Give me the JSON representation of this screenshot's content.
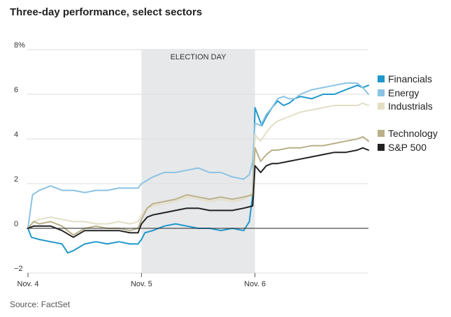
{
  "title": "Three-day performance, select sectors",
  "source": "Source: FactSet",
  "chart_data": {
    "type": "line",
    "title": "Three-day performance, select sectors",
    "xlabel": "",
    "ylabel": "",
    "x_tick_labels": [
      "Nov. 4",
      "Nov. 5",
      "Nov. 6"
    ],
    "y_ticks": [
      8,
      6,
      4,
      2,
      0,
      -2
    ],
    "y_tick_labels": [
      "8%",
      "6",
      "4",
      "2",
      "0",
      "−2"
    ],
    "ylim": [
      -2,
      8
    ],
    "xlim": [
      0,
      3
    ],
    "grid": true,
    "annotation": {
      "label": "ELECTION DAY",
      "from": 1,
      "to": 2,
      "color": "#e7e8ea"
    },
    "legend": "right",
    "series": [
      {
        "name": "Financials",
        "color": "#1f98cc",
        "width": 2,
        "points": [
          [
            0,
            0
          ],
          [
            0.03,
            -0.4
          ],
          [
            0.1,
            -0.5
          ],
          [
            0.2,
            -0.6
          ],
          [
            0.3,
            -0.7
          ],
          [
            0.35,
            -1.1
          ],
          [
            0.4,
            -1.0
          ],
          [
            0.5,
            -0.7
          ],
          [
            0.6,
            -0.6
          ],
          [
            0.7,
            -0.7
          ],
          [
            0.8,
            -0.6
          ],
          [
            0.9,
            -0.7
          ],
          [
            0.97,
            -0.7
          ],
          [
            1.0,
            -0.5
          ],
          [
            1.03,
            -0.2
          ],
          [
            1.1,
            -0.1
          ],
          [
            1.2,
            0.1
          ],
          [
            1.3,
            0.2
          ],
          [
            1.4,
            0.1
          ],
          [
            1.5,
            0.0
          ],
          [
            1.6,
            0.0
          ],
          [
            1.7,
            -0.1
          ],
          [
            1.8,
            0.0
          ],
          [
            1.9,
            -0.1
          ],
          [
            1.95,
            0.3
          ],
          [
            1.98,
            1.5
          ],
          [
            2.0,
            5.4
          ],
          [
            2.03,
            5.0
          ],
          [
            2.06,
            4.6
          ],
          [
            2.1,
            5.0
          ],
          [
            2.15,
            5.4
          ],
          [
            2.2,
            5.7
          ],
          [
            2.25,
            5.5
          ],
          [
            2.3,
            5.6
          ],
          [
            2.35,
            5.8
          ],
          [
            2.4,
            5.9
          ],
          [
            2.5,
            5.8
          ],
          [
            2.6,
            6.0
          ],
          [
            2.7,
            6.0
          ],
          [
            2.8,
            6.2
          ],
          [
            2.9,
            6.4
          ],
          [
            2.95,
            6.3
          ],
          [
            3.0,
            6.4
          ]
        ]
      },
      {
        "name": "Energy",
        "color": "#8cc3e3",
        "width": 2,
        "points": [
          [
            0,
            0
          ],
          [
            0.04,
            1.5
          ],
          [
            0.1,
            1.7
          ],
          [
            0.2,
            1.9
          ],
          [
            0.3,
            1.7
          ],
          [
            0.4,
            1.7
          ],
          [
            0.5,
            1.6
          ],
          [
            0.6,
            1.7
          ],
          [
            0.7,
            1.7
          ],
          [
            0.8,
            1.8
          ],
          [
            0.9,
            1.8
          ],
          [
            0.97,
            1.8
          ],
          [
            1.0,
            2.0
          ],
          [
            1.1,
            2.3
          ],
          [
            1.2,
            2.5
          ],
          [
            1.3,
            2.5
          ],
          [
            1.4,
            2.6
          ],
          [
            1.5,
            2.7
          ],
          [
            1.6,
            2.5
          ],
          [
            1.7,
            2.5
          ],
          [
            1.8,
            2.3
          ],
          [
            1.9,
            2.2
          ],
          [
            1.95,
            2.4
          ],
          [
            1.98,
            3.0
          ],
          [
            2.0,
            4.7
          ],
          [
            2.05,
            4.6
          ],
          [
            2.1,
            5.1
          ],
          [
            2.15,
            5.4
          ],
          [
            2.2,
            5.8
          ],
          [
            2.25,
            5.9
          ],
          [
            2.3,
            5.8
          ],
          [
            2.35,
            5.8
          ],
          [
            2.4,
            6.0
          ],
          [
            2.5,
            6.2
          ],
          [
            2.6,
            6.3
          ],
          [
            2.7,
            6.4
          ],
          [
            2.8,
            6.5
          ],
          [
            2.9,
            6.5
          ],
          [
            2.95,
            6.3
          ],
          [
            3.0,
            6.0
          ]
        ]
      },
      {
        "name": "Industrials",
        "color": "#e3dfc6",
        "width": 2,
        "points": [
          [
            0,
            0
          ],
          [
            0.05,
            0.3
          ],
          [
            0.1,
            0.4
          ],
          [
            0.2,
            0.5
          ],
          [
            0.3,
            0.4
          ],
          [
            0.4,
            0.3
          ],
          [
            0.5,
            0.3
          ],
          [
            0.6,
            0.2
          ],
          [
            0.7,
            0.2
          ],
          [
            0.8,
            0.3
          ],
          [
            0.9,
            0.2
          ],
          [
            0.97,
            0.3
          ],
          [
            1.0,
            0.6
          ],
          [
            1.05,
            0.9
          ],
          [
            1.1,
            1.0
          ],
          [
            1.2,
            1.1
          ],
          [
            1.3,
            1.2
          ],
          [
            1.4,
            1.4
          ],
          [
            1.5,
            1.3
          ],
          [
            1.6,
            1.2
          ],
          [
            1.7,
            1.3
          ],
          [
            1.8,
            1.2
          ],
          [
            1.9,
            1.3
          ],
          [
            1.98,
            1.6
          ],
          [
            2.0,
            4.2
          ],
          [
            2.05,
            3.9
          ],
          [
            2.1,
            4.3
          ],
          [
            2.15,
            4.6
          ],
          [
            2.2,
            4.8
          ],
          [
            2.3,
            5.0
          ],
          [
            2.4,
            5.2
          ],
          [
            2.5,
            5.3
          ],
          [
            2.6,
            5.4
          ],
          [
            2.7,
            5.5
          ],
          [
            2.8,
            5.5
          ],
          [
            2.9,
            5.5
          ],
          [
            2.95,
            5.6
          ],
          [
            3.0,
            5.5
          ]
        ]
      },
      {
        "name": "Technology",
        "color": "#b9b088",
        "width": 2,
        "points": [
          [
            0,
            0
          ],
          [
            0.05,
            0.3
          ],
          [
            0.1,
            0.2
          ],
          [
            0.2,
            0.3
          ],
          [
            0.3,
            0.1
          ],
          [
            0.4,
            -0.3
          ],
          [
            0.5,
            0.0
          ],
          [
            0.6,
            0.1
          ],
          [
            0.7,
            0.0
          ],
          [
            0.8,
            0.0
          ],
          [
            0.9,
            -0.1
          ],
          [
            0.97,
            0.0
          ],
          [
            1.0,
            0.4
          ],
          [
            1.05,
            0.9
          ],
          [
            1.1,
            1.1
          ],
          [
            1.2,
            1.2
          ],
          [
            1.3,
            1.3
          ],
          [
            1.4,
            1.5
          ],
          [
            1.5,
            1.4
          ],
          [
            1.6,
            1.3
          ],
          [
            1.7,
            1.4
          ],
          [
            1.8,
            1.3
          ],
          [
            1.9,
            1.4
          ],
          [
            1.98,
            1.5
          ],
          [
            2.0,
            3.6
          ],
          [
            2.05,
            3.0
          ],
          [
            2.1,
            3.3
          ],
          [
            2.15,
            3.5
          ],
          [
            2.2,
            3.5
          ],
          [
            2.3,
            3.6
          ],
          [
            2.4,
            3.6
          ],
          [
            2.5,
            3.7
          ],
          [
            2.6,
            3.7
          ],
          [
            2.7,
            3.8
          ],
          [
            2.8,
            3.9
          ],
          [
            2.9,
            4.0
          ],
          [
            2.95,
            4.1
          ],
          [
            3.0,
            3.9
          ]
        ]
      },
      {
        "name": "S&P 500",
        "color": "#222222",
        "width": 2,
        "points": [
          [
            0,
            0
          ],
          [
            0.05,
            0.1
          ],
          [
            0.1,
            0.1
          ],
          [
            0.2,
            0.1
          ],
          [
            0.3,
            -0.1
          ],
          [
            0.4,
            -0.4
          ],
          [
            0.5,
            -0.1
          ],
          [
            0.6,
            -0.1
          ],
          [
            0.7,
            -0.1
          ],
          [
            0.8,
            -0.1
          ],
          [
            0.9,
            -0.2
          ],
          [
            0.97,
            -0.2
          ],
          [
            1.0,
            0.2
          ],
          [
            1.05,
            0.5
          ],
          [
            1.1,
            0.6
          ],
          [
            1.2,
            0.7
          ],
          [
            1.3,
            0.8
          ],
          [
            1.4,
            0.9
          ],
          [
            1.5,
            0.9
          ],
          [
            1.6,
            0.8
          ],
          [
            1.7,
            0.8
          ],
          [
            1.8,
            0.8
          ],
          [
            1.9,
            0.9
          ],
          [
            1.98,
            1.0
          ],
          [
            2.0,
            2.8
          ],
          [
            2.05,
            2.5
          ],
          [
            2.1,
            2.8
          ],
          [
            2.15,
            2.9
          ],
          [
            2.2,
            2.9
          ],
          [
            2.3,
            3.0
          ],
          [
            2.4,
            3.1
          ],
          [
            2.5,
            3.2
          ],
          [
            2.6,
            3.3
          ],
          [
            2.7,
            3.4
          ],
          [
            2.8,
            3.4
          ],
          [
            2.9,
            3.5
          ],
          [
            2.95,
            3.6
          ],
          [
            3.0,
            3.5
          ]
        ]
      }
    ]
  }
}
